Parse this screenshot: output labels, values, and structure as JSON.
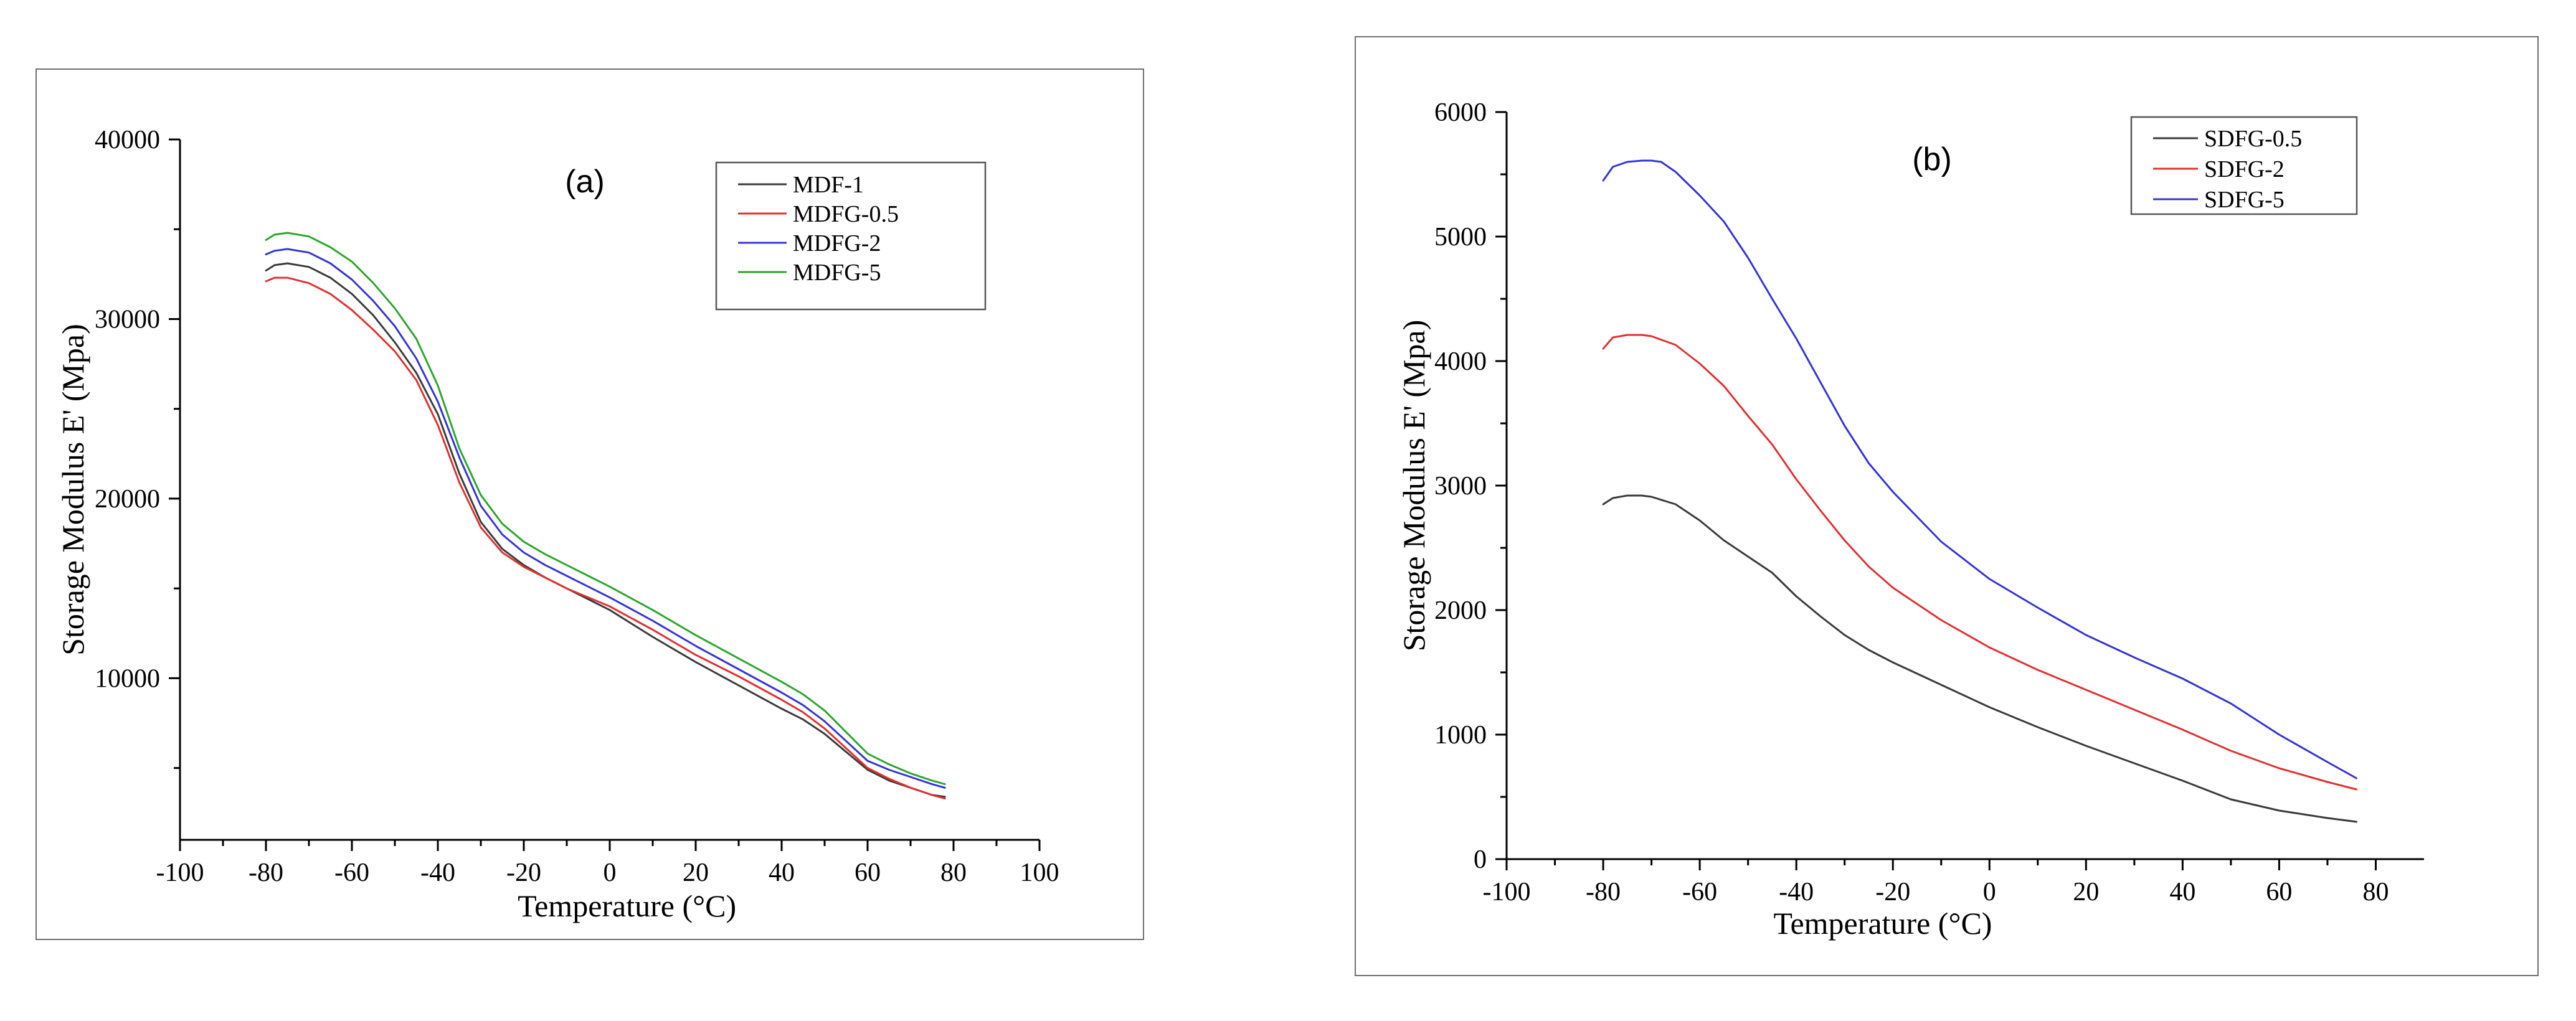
{
  "chart_data": [
    {
      "type": "line",
      "panel_label": "(a)",
      "xlabel": "Temperature (°C)",
      "ylabel": "Storage Modulus E' (Mpa)",
      "xlim": [
        -100,
        100
      ],
      "ylim": [
        1000,
        40000
      ],
      "xticks": [
        -100,
        -80,
        -60,
        -40,
        -20,
        0,
        20,
        40,
        60,
        80,
        100
      ],
      "yticks": [
        10000,
        20000,
        30000,
        40000
      ],
      "legend_position": "top-right",
      "series": [
        {
          "name": "MDF-1",
          "color": "#3a3a3a",
          "x": [
            -80,
            -78,
            -75,
            -70,
            -65,
            -60,
            -55,
            -50,
            -45,
            -40,
            -35,
            -30,
            -25,
            -20,
            -15,
            -10,
            -5,
            0,
            10,
            20,
            30,
            40,
            45,
            50,
            55,
            60,
            65,
            70,
            75,
            78
          ],
          "y": [
            32700,
            33000,
            33100,
            32900,
            32300,
            31400,
            30200,
            28700,
            27000,
            24700,
            21400,
            18700,
            17200,
            16300,
            15600,
            15000,
            14400,
            13800,
            12300,
            10900,
            9600,
            8300,
            7700,
            6900,
            5900,
            4900,
            4300,
            3900,
            3500,
            3400
          ]
        },
        {
          "name": "MDFG-0.5",
          "color": "#e03030",
          "x": [
            -80,
            -78,
            -75,
            -70,
            -65,
            -60,
            -55,
            -50,
            -45,
            -40,
            -35,
            -30,
            -25,
            -20,
            -15,
            -10,
            -5,
            0,
            10,
            20,
            30,
            40,
            45,
            50,
            55,
            60,
            65,
            70,
            75,
            78
          ],
          "y": [
            32100,
            32300,
            32300,
            32000,
            31400,
            30500,
            29400,
            28200,
            26600,
            24100,
            20900,
            18400,
            17000,
            16200,
            15600,
            15000,
            14500,
            14000,
            12700,
            11300,
            10100,
            8800,
            8100,
            7200,
            6100,
            5000,
            4400,
            3900,
            3500,
            3300
          ]
        },
        {
          "name": "MDFG-2",
          "color": "#3333d8",
          "x": [
            -80,
            -78,
            -75,
            -70,
            -65,
            -60,
            -55,
            -50,
            -45,
            -40,
            -35,
            -30,
            -25,
            -20,
            -15,
            -10,
            -5,
            0,
            10,
            20,
            30,
            40,
            45,
            50,
            55,
            60,
            65,
            70,
            75,
            78
          ],
          "y": [
            33600,
            33800,
            33900,
            33700,
            33100,
            32200,
            31000,
            29600,
            27800,
            25400,
            22300,
            19600,
            18000,
            17000,
            16300,
            15700,
            15100,
            14500,
            13200,
            11800,
            10500,
            9200,
            8500,
            7600,
            6500,
            5400,
            4900,
            4500,
            4100,
            3900
          ]
        },
        {
          "name": "MDFG-5",
          "color": "#2aa62a",
          "x": [
            -80,
            -78,
            -75,
            -70,
            -65,
            -60,
            -55,
            -50,
            -45,
            -40,
            -35,
            -30,
            -25,
            -20,
            -15,
            -10,
            -5,
            0,
            10,
            20,
            30,
            40,
            45,
            50,
            55,
            60,
            65,
            70,
            75,
            78
          ],
          "y": [
            34400,
            34700,
            34800,
            34600,
            34000,
            33200,
            32000,
            30600,
            28900,
            26300,
            22800,
            20200,
            18600,
            17600,
            16900,
            16300,
            15700,
            15100,
            13800,
            12400,
            11100,
            9800,
            9100,
            8200,
            7000,
            5800,
            5200,
            4700,
            4300,
            4100
          ]
        }
      ]
    },
    {
      "type": "line",
      "panel_label": "(b)",
      "xlabel": "Temperature (°C)",
      "ylabel": "Storage Modulus E' (Mpa)",
      "xlim": [
        -100,
        90
      ],
      "ylim": [
        0,
        6000
      ],
      "xticks": [
        -100,
        -80,
        -60,
        -40,
        -20,
        0,
        20,
        40,
        60,
        80
      ],
      "yticks": [
        0,
        1000,
        2000,
        3000,
        4000,
        5000,
        6000
      ],
      "legend_position": "top-right",
      "series": [
        {
          "name": "SDFG-0.5",
          "color": "#3a3a3a",
          "x": [
            -80,
            -78,
            -75,
            -72,
            -70,
            -65,
            -60,
            -55,
            -50,
            -45,
            -40,
            -35,
            -30,
            -25,
            -20,
            -10,
            0,
            10,
            20,
            30,
            40,
            50,
            60,
            70,
            76
          ],
          "y": [
            2850,
            2900,
            2920,
            2920,
            2910,
            2850,
            2720,
            2560,
            2430,
            2300,
            2110,
            1950,
            1800,
            1680,
            1580,
            1400,
            1220,
            1060,
            910,
            770,
            630,
            480,
            390,
            330,
            300
          ]
        },
        {
          "name": "SDFG-2",
          "color": "#e03030",
          "x": [
            -80,
            -78,
            -75,
            -72,
            -70,
            -65,
            -60,
            -55,
            -50,
            -45,
            -40,
            -35,
            -30,
            -25,
            -20,
            -10,
            0,
            10,
            20,
            30,
            40,
            50,
            60,
            70,
            76
          ],
          "y": [
            4100,
            4190,
            4210,
            4210,
            4200,
            4130,
            3980,
            3800,
            3560,
            3330,
            3050,
            2800,
            2560,
            2350,
            2180,
            1920,
            1700,
            1520,
            1360,
            1200,
            1040,
            870,
            730,
            620,
            560
          ]
        },
        {
          "name": "SDFG-5",
          "color": "#3333d8",
          "x": [
            -80,
            -78,
            -75,
            -72,
            -70,
            -68,
            -65,
            -60,
            -55,
            -50,
            -45,
            -40,
            -35,
            -30,
            -25,
            -20,
            -10,
            0,
            10,
            20,
            30,
            40,
            50,
            60,
            70,
            76
          ],
          "y": [
            5450,
            5560,
            5600,
            5610,
            5610,
            5600,
            5520,
            5330,
            5120,
            4830,
            4500,
            4180,
            3830,
            3480,
            3180,
            2950,
            2550,
            2250,
            2020,
            1800,
            1620,
            1450,
            1250,
            1000,
            780,
            650
          ]
        }
      ]
    }
  ]
}
